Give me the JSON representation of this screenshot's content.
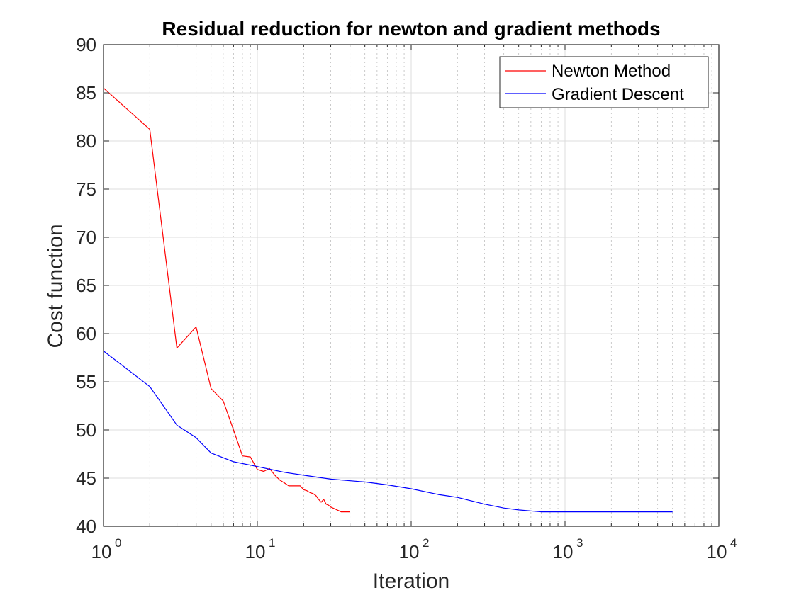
{
  "chart_data": {
    "type": "line",
    "title": "Residual reduction for newton and gradient methods",
    "xlabel": "Iteration",
    "ylabel": "Cost function",
    "xscale": "log",
    "xlim": [
      1,
      10000
    ],
    "ylim": [
      40,
      90
    ],
    "grid": true,
    "legend_position": "top-right",
    "x_tick_labels": [
      {
        "value": 1,
        "base": "10",
        "exp": "0"
      },
      {
        "value": 10,
        "base": "10",
        "exp": "1"
      },
      {
        "value": 100,
        "base": "10",
        "exp": "2"
      },
      {
        "value": 1000,
        "base": "10",
        "exp": "3"
      },
      {
        "value": 10000,
        "base": "10",
        "exp": "4"
      }
    ],
    "y_ticks": [
      40,
      45,
      50,
      55,
      60,
      65,
      70,
      75,
      80,
      85,
      90
    ],
    "series": [
      {
        "name": "Newton Method",
        "color": "#ff0000",
        "x": [
          1,
          2,
          3,
          4,
          5,
          6,
          7,
          8,
          9,
          10,
          11,
          12,
          13,
          14,
          15,
          16,
          17,
          18,
          19,
          20,
          21,
          22,
          23,
          24,
          25,
          26,
          27,
          28,
          29,
          30,
          31,
          32,
          33,
          34,
          35,
          36,
          37,
          38,
          39,
          40
        ],
        "y": [
          85.5,
          81.2,
          58.5,
          60.7,
          54.3,
          53.0,
          50.0,
          47.3,
          47.2,
          45.9,
          45.7,
          46.0,
          45.3,
          44.8,
          44.5,
          44.2,
          44.2,
          44.2,
          44.2,
          43.8,
          43.7,
          43.5,
          43.4,
          43.2,
          42.8,
          42.5,
          42.8,
          42.3,
          42.2,
          42.0,
          41.9,
          41.8,
          41.7,
          41.6,
          41.5,
          41.5,
          41.5,
          41.5,
          41.5,
          41.5
        ]
      },
      {
        "name": "Gradient Descent",
        "color": "#0000ff",
        "x": [
          1,
          2,
          3,
          4,
          5,
          7,
          10,
          15,
          20,
          30,
          50,
          70,
          100,
          150,
          200,
          300,
          400,
          500,
          700,
          1000,
          1500,
          2000,
          3000,
          5000
        ],
        "y": [
          58.2,
          54.5,
          50.5,
          49.2,
          47.6,
          46.7,
          46.2,
          45.6,
          45.3,
          44.9,
          44.6,
          44.3,
          43.9,
          43.3,
          43.0,
          42.3,
          41.9,
          41.7,
          41.5,
          41.5,
          41.5,
          41.5,
          41.5,
          41.5
        ]
      }
    ]
  }
}
